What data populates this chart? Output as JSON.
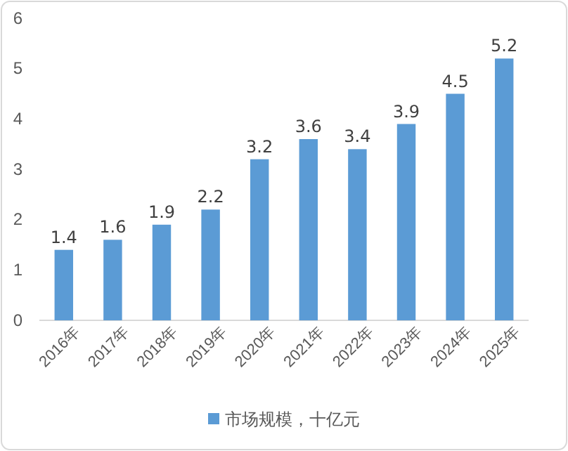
{
  "chart_data": {
    "type": "bar",
    "categories": [
      "2016年",
      "2017年",
      "2018年",
      "2019年",
      "2020年",
      "2021年",
      "2022年",
      "2023年",
      "2024年",
      "2025年"
    ],
    "series": [
      {
        "name": "市场规模，十亿元",
        "color": "#5b9bd5",
        "values": [
          1.4,
          1.6,
          1.9,
          2.2,
          3.2,
          3.6,
          3.4,
          3.9,
          4.5,
          5.2
        ]
      }
    ],
    "ylim": [
      0,
      6
    ],
    "yticks": [
      0,
      1,
      2,
      3,
      4,
      5,
      6
    ],
    "data_labels": true,
    "legend": "bottom",
    "grid": false
  }
}
